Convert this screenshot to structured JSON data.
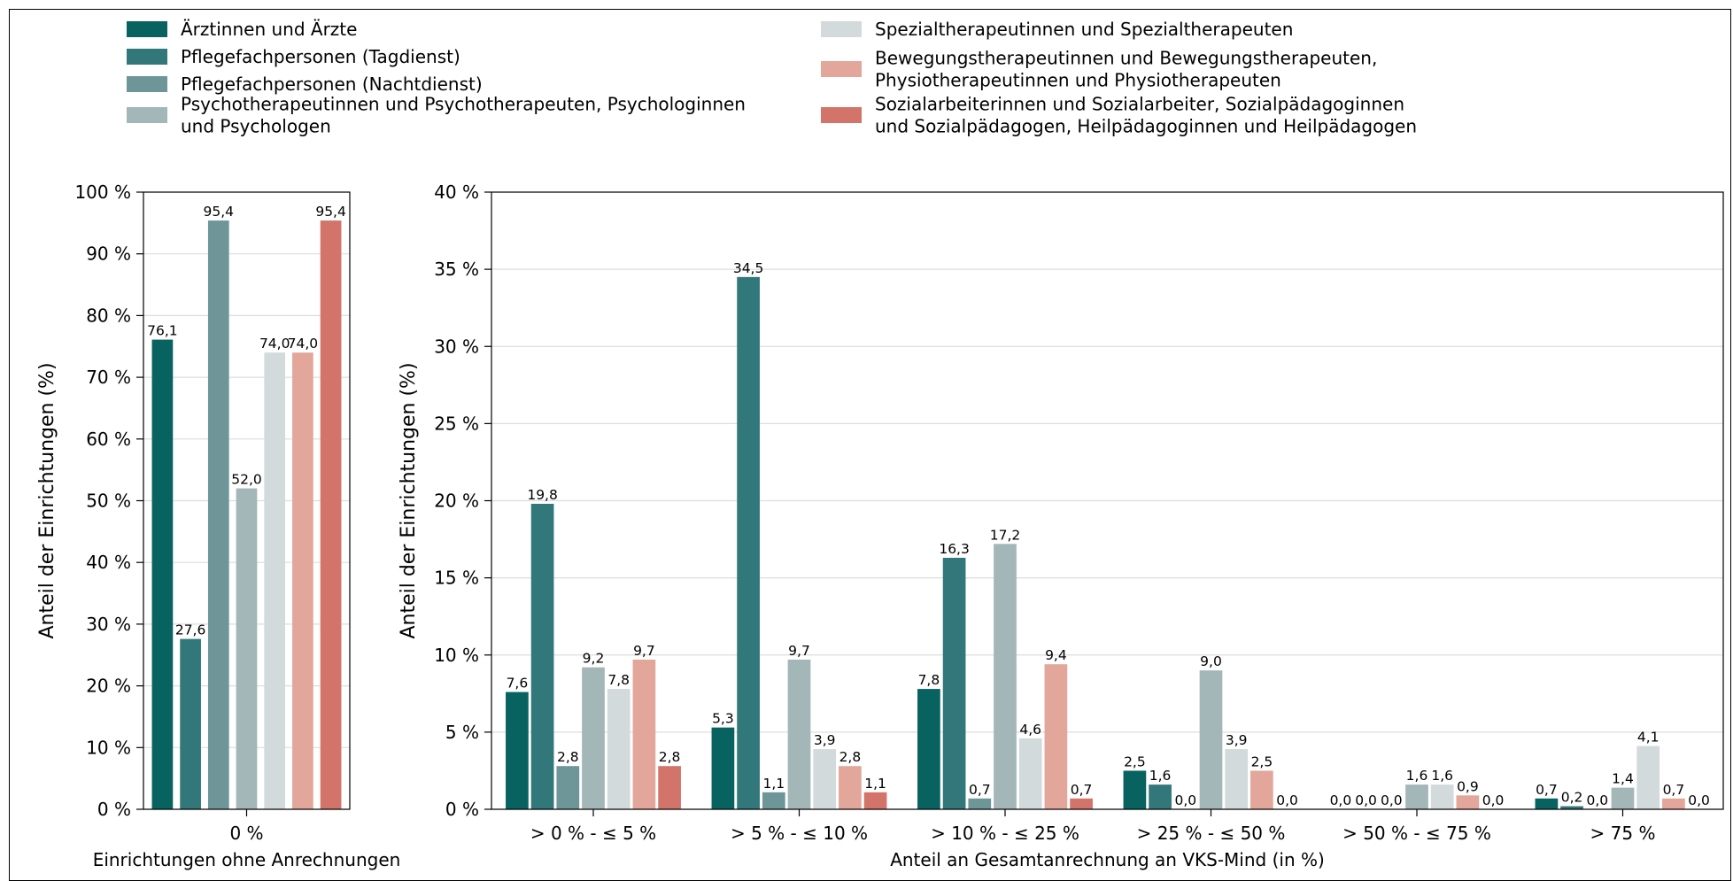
{
  "legend": [
    {
      "label_lines": [
        "Ärztinnen und Ärzte"
      ],
      "color": "#08625f"
    },
    {
      "label_lines": [
        "Pflegefachpersonen (Tagdienst)"
      ],
      "color": "#32787a"
    },
    {
      "label_lines": [
        "Pflegefachpersonen (Nachtdienst)"
      ],
      "color": "#6e9699"
    },
    {
      "label_lines": [
        "Psychotherapeutinnen und Psychotherapeuten, Psychologinnen",
        "und Psychologen"
      ],
      "color": "#a3b6b8"
    },
    {
      "label_lines": [
        "Spezialtherapeutinnen und Spezialtherapeuten"
      ],
      "color": "#d2dadc"
    },
    {
      "label_lines": [
        "Bewegungstherapeutinnen und Bewegungstherapeuten,",
        "Physiotherapeutinnen und Physiotherapeuten"
      ],
      "color": "#e3a69a"
    },
    {
      "label_lines": [
        "Sozialarbeiterinnen und Sozialarbeiter, Sozialpädagoginnen",
        "und Sozialpädagogen, Heilpädagoginnen und Heilpädagogen"
      ],
      "color": "#d3746a"
    }
  ],
  "chart_data": [
    {
      "type": "bar",
      "ylabel": "Anteil der Einrichtungen (%)",
      "xlabel": "Einrichtungen ohne Anrechnungen",
      "categories": [
        "0 %"
      ],
      "ylim": [
        0,
        100
      ],
      "yticks": [
        "0 %",
        "10 %",
        "20 %",
        "30 %",
        "40 %",
        "50 %",
        "60 %",
        "70 %",
        "80 %",
        "90 %",
        "100 %"
      ],
      "grid": true,
      "series": [
        {
          "name": "Ärztinnen und Ärzte",
          "values": [
            76.1
          ],
          "labels": [
            "76,1"
          ]
        },
        {
          "name": "Pflegefachpersonen (Tagdienst)",
          "values": [
            27.6
          ],
          "labels": [
            "27,6"
          ]
        },
        {
          "name": "Pflegefachpersonen (Nachtdienst)",
          "values": [
            95.4
          ],
          "labels": [
            "95,4"
          ]
        },
        {
          "name": "Psychotherapeutinnen und Psychotherapeuten, Psychologinnen und Psychologen",
          "values": [
            52.0
          ],
          "labels": [
            "52,0"
          ]
        },
        {
          "name": "Spezialtherapeutinnen und Spezialtherapeuten",
          "values": [
            74.0
          ],
          "labels": [
            "74,0"
          ]
        },
        {
          "name": "Bewegungstherapeutinnen und Bewegungstherapeuten, Physiotherapeutinnen und Physiotherapeuten",
          "values": [
            74.0
          ],
          "labels": [
            "74,0"
          ]
        },
        {
          "name": "Sozialarbeiterinnen und Sozialarbeiter, Sozialpädagoginnen und Sozialpädagogen, Heilpädagoginnen und Heilpädagogen",
          "values": [
            95.4
          ],
          "labels": [
            "95,4"
          ]
        }
      ]
    },
    {
      "type": "bar",
      "ylabel": "Anteil der Einrichtungen (%)",
      "xlabel": "Anteil an Gesamtanrechnung an VKS-Mind (in %)",
      "categories": [
        "> 0 % - ≤ 5 %",
        "> 5 % - ≤ 10 %",
        "> 10 % - ≤ 25 %",
        "> 25 % - ≤ 50 %",
        "> 50 % - ≤ 75 %",
        "> 75 %"
      ],
      "ylim": [
        0,
        40
      ],
      "yticks": [
        "0 %",
        "5 %",
        "10 %",
        "15 %",
        "20 %",
        "25 %",
        "30 %",
        "35 %",
        "40 %"
      ],
      "grid": true,
      "series": [
        {
          "name": "Ärztinnen und Ärzte",
          "values": [
            7.6,
            5.3,
            7.8,
            2.5,
            0.0,
            0.7
          ],
          "labels": [
            "7,6",
            "5,3",
            "7,8",
            "2,5",
            "0,0",
            "0,7"
          ]
        },
        {
          "name": "Pflegefachpersonen (Tagdienst)",
          "values": [
            19.8,
            34.5,
            16.3,
            1.6,
            0.0,
            0.2
          ],
          "labels": [
            "19,8",
            "34,5",
            "16,3",
            "1,6",
            "0,0",
            "0,2"
          ]
        },
        {
          "name": "Pflegefachpersonen (Nachtdienst)",
          "values": [
            2.8,
            1.1,
            0.7,
            0.0,
            0.0,
            0.0
          ],
          "labels": [
            "2,8",
            "1,1",
            "0,7",
            "0,0",
            "0,0",
            "0,0"
          ]
        },
        {
          "name": "Psychotherapeutinnen und Psychotherapeuten, Psychologinnen und Psychologen",
          "values": [
            9.2,
            9.7,
            17.2,
            9.0,
            1.6,
            1.4
          ],
          "labels": [
            "9,2",
            "9,7",
            "17,2",
            "9,0",
            "1,6",
            "1,4"
          ]
        },
        {
          "name": "Spezialtherapeutinnen und Spezialtherapeuten",
          "values": [
            7.8,
            3.9,
            4.6,
            3.9,
            1.6,
            4.1
          ],
          "labels": [
            "7,8",
            "3,9",
            "4,6",
            "3,9",
            "1,6",
            "4,1"
          ]
        },
        {
          "name": "Bewegungstherapeutinnen und Bewegungstherapeuten, Physiotherapeutinnen und Physiotherapeuten",
          "values": [
            9.7,
            2.8,
            9.4,
            2.5,
            0.9,
            0.7
          ],
          "labels": [
            "9,7",
            "2,8",
            "9,4",
            "2,5",
            "0,9",
            "0,7"
          ]
        },
        {
          "name": "Sozialarbeiterinnen und Sozialarbeiter, Sozialpädagoginnen und Sozialpädagogen, Heilpädagoginnen und Heilpädagogen",
          "values": [
            2.8,
            1.1,
            0.7,
            0.0,
            0.0,
            0.0
          ],
          "labels": [
            "2,8",
            "1,1",
            "0,7",
            "0,0",
            "0,0",
            "0,0"
          ]
        }
      ]
    }
  ]
}
